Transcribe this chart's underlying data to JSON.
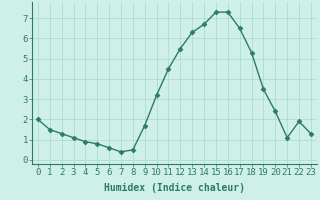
{
  "x": [
    0,
    1,
    2,
    3,
    4,
    5,
    6,
    7,
    8,
    9,
    10,
    11,
    12,
    13,
    14,
    15,
    16,
    17,
    18,
    19,
    20,
    21,
    22,
    23
  ],
  "y": [
    2.0,
    1.5,
    1.3,
    1.1,
    0.9,
    0.8,
    0.6,
    0.4,
    0.5,
    1.7,
    3.2,
    4.5,
    5.5,
    6.3,
    6.7,
    7.3,
    7.3,
    6.5,
    5.3,
    3.5,
    2.4,
    1.1,
    1.9,
    1.3
  ],
  "line_color": "#2d7a6a",
  "marker": "D",
  "marker_size": 2.5,
  "line_width": 1.0,
  "bg_color": "#cef0e8",
  "grid_color": "#aad8cc",
  "xlabel": "Humidex (Indice chaleur)",
  "xlabel_fontsize": 7,
  "tick_fontsize": 6.5,
  "ylim": [
    -0.2,
    7.8
  ],
  "xlim": [
    -0.5,
    23.5
  ],
  "yticks": [
    0,
    1,
    2,
    3,
    4,
    5,
    6,
    7
  ],
  "xticks": [
    0,
    1,
    2,
    3,
    4,
    5,
    6,
    7,
    8,
    9,
    10,
    11,
    12,
    13,
    14,
    15,
    16,
    17,
    18,
    19,
    20,
    21,
    22,
    23
  ]
}
